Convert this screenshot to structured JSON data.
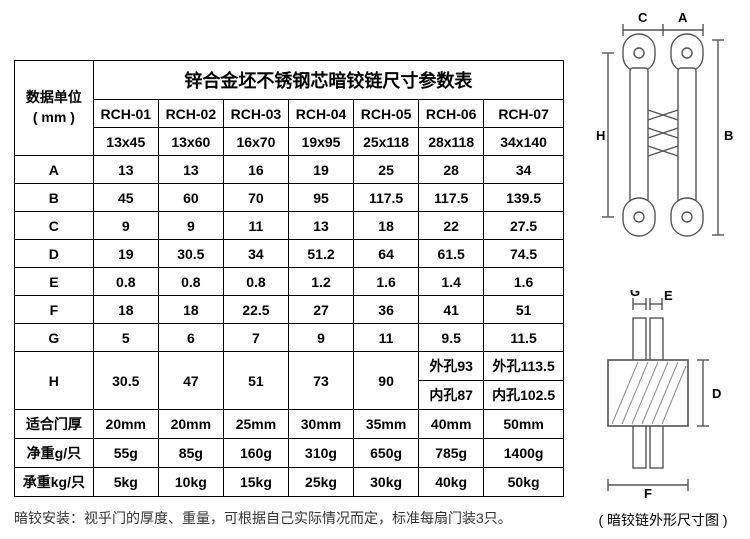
{
  "table": {
    "title": "锌合金坯不锈钢芯暗铰链尺寸参数表",
    "unit_label_l1": "数据单位",
    "unit_label_l2": "( mm )",
    "models": [
      "RCH-01",
      "RCH-02",
      "RCH-03",
      "RCH-04",
      "RCH-05",
      "RCH-06",
      "RCH-07"
    ],
    "sizes": [
      "13x45",
      "13x60",
      "16x70",
      "19x95",
      "25x118",
      "28x118",
      "34x140"
    ],
    "rows": [
      {
        "label": "A",
        "v": [
          "13",
          "13",
          "16",
          "19",
          "25",
          "28",
          "34"
        ]
      },
      {
        "label": "B",
        "v": [
          "45",
          "60",
          "70",
          "95",
          "117.5",
          "117.5",
          "139.5"
        ]
      },
      {
        "label": "C",
        "v": [
          "9",
          "9",
          "11",
          "13",
          "18",
          "22",
          "27.5"
        ]
      },
      {
        "label": "D",
        "v": [
          "19",
          "30.5",
          "34",
          "51.2",
          "64",
          "61.5",
          "74.5"
        ]
      },
      {
        "label": "E",
        "v": [
          "0.8",
          "0.8",
          "0.8",
          "1.2",
          "1.6",
          "1.4",
          "1.6"
        ]
      },
      {
        "label": "F",
        "v": [
          "18",
          "18",
          "22.5",
          "27",
          "36",
          "41",
          "51"
        ]
      },
      {
        "label": "G",
        "v": [
          "5",
          "6",
          "7",
          "9",
          "11",
          "9.5",
          "11.5"
        ]
      }
    ],
    "H_label": "H",
    "H_first5": [
      "30.5",
      "47",
      "51",
      "73",
      "90"
    ],
    "H_c6_top": "外孔93",
    "H_c6_bot": "内孔87",
    "H_c7_top": "外孔113.5",
    "H_c7_bot": "内孔102.5",
    "thick_label": "适合门厚",
    "thick": [
      "20mm",
      "20mm",
      "25mm",
      "30mm",
      "35mm",
      "40mm",
      "50mm"
    ],
    "netw_label": "净重g/只",
    "netw": [
      "55g",
      "85g",
      "160g",
      "310g",
      "650g",
      "785g",
      "1400g"
    ],
    "load_label": "承重kg/只",
    "load": [
      "5kg",
      "10kg",
      "15kg",
      "25kg",
      "30kg",
      "40kg",
      "50kg"
    ]
  },
  "footnote": "暗铰安装：视乎门的厚度、重量，可根据自己实际情况而定，标准每扇门装3只。",
  "diagram": {
    "caption": "( 暗铰链外形尺寸图 )",
    "labels": {
      "A": "A",
      "B": "B",
      "C": "C",
      "D": "D",
      "E": "E",
      "F": "F",
      "G": "G",
      "H": "H"
    },
    "stroke": "#555555",
    "fill": "#ffffff"
  }
}
